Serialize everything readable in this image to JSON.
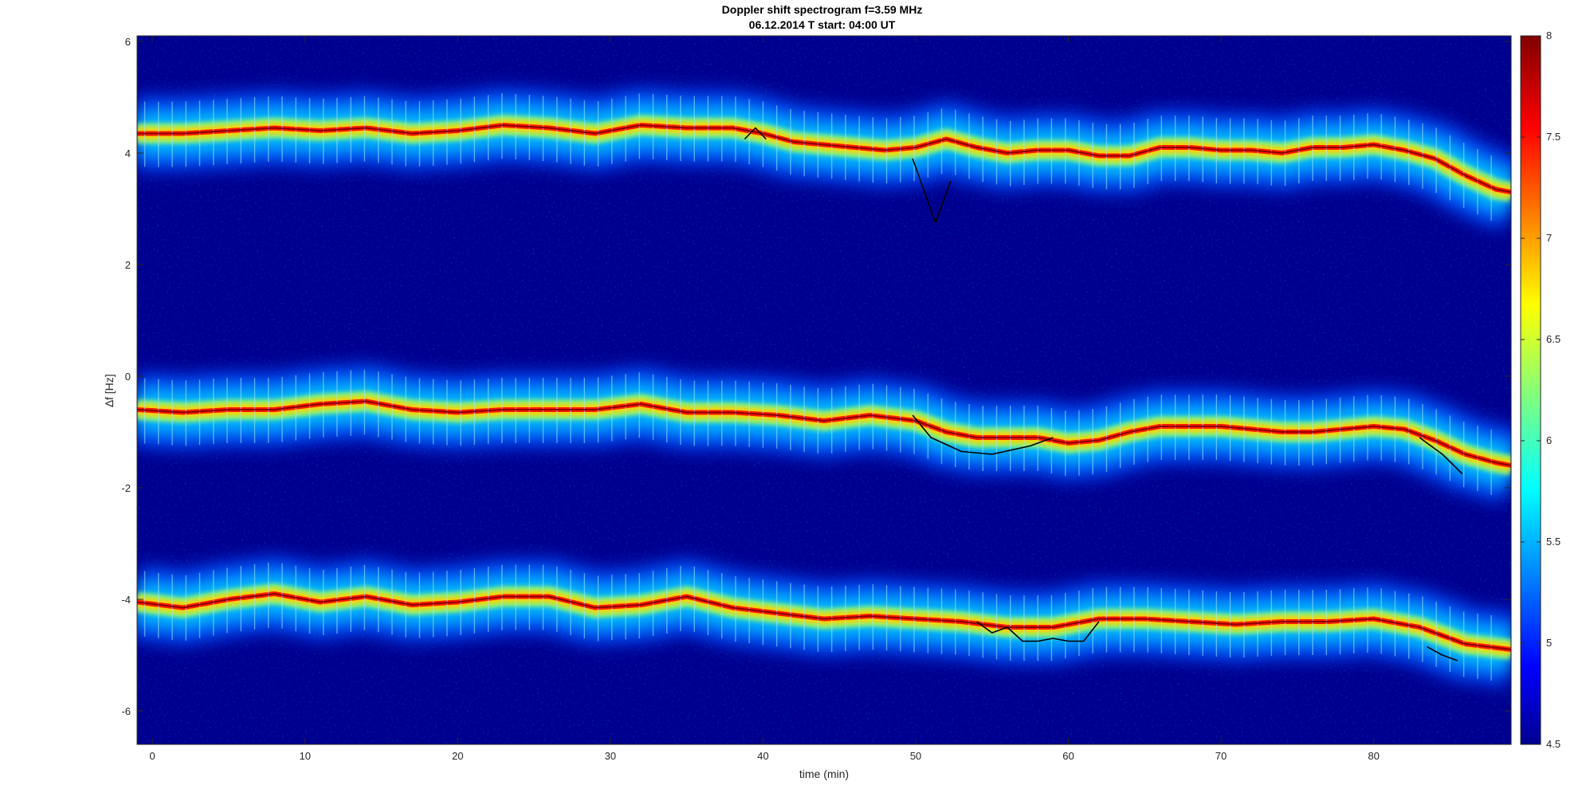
{
  "chart_data": {
    "type": "heatmap",
    "title": "Doppler shift spectrogram f=3.59 MHz",
    "subtitle": "06.12.2014   T start: 04:00 UT",
    "xlabel": "time (min)",
    "ylabel": "∆f [Hz]",
    "xlim": [
      -1,
      89
    ],
    "ylim": [
      -6.6,
      6.1
    ],
    "x_ticks": [
      "0",
      "10",
      "20",
      "30",
      "40",
      "50",
      "60",
      "70",
      "80"
    ],
    "y_ticks": [
      "6",
      "4",
      "2",
      "0",
      "-2",
      "-4",
      "-6"
    ],
    "colorbar": {
      "range": [
        4.5,
        8
      ],
      "ticks": [
        "8",
        "7.5",
        "7",
        "6.5",
        "6",
        "5.5",
        "5",
        "4.5"
      ],
      "colormap": "jet"
    },
    "background_color": "#00008f",
    "traces": [
      {
        "x": [
          -1,
          2,
          5,
          8,
          11,
          14,
          17,
          20,
          23,
          26,
          29,
          32,
          35,
          38,
          40,
          42,
          44,
          46,
          48,
          50,
          52,
          54,
          56,
          58,
          60,
          62,
          64,
          66,
          68,
          70,
          72,
          74,
          76,
          78,
          80,
          82,
          84,
          86,
          88,
          89
        ],
        "y": [
          4.35,
          4.35,
          4.4,
          4.45,
          4.4,
          4.45,
          4.35,
          4.4,
          4.5,
          4.45,
          4.35,
          4.5,
          4.45,
          4.45,
          4.35,
          4.2,
          4.15,
          4.1,
          4.05,
          4.1,
          4.25,
          4.1,
          4.0,
          4.05,
          4.05,
          3.95,
          3.95,
          4.1,
          4.1,
          4.05,
          4.05,
          4.0,
          4.1,
          4.1,
          4.15,
          4.05,
          3.9,
          3.6,
          3.35,
          3.3
        ]
      },
      {
        "x": [
          -1,
          2,
          5,
          8,
          11,
          14,
          17,
          20,
          23,
          26,
          29,
          32,
          35,
          38,
          41,
          44,
          47,
          50,
          52,
          54,
          56,
          58,
          60,
          62,
          64,
          66,
          68,
          70,
          72,
          74,
          76,
          78,
          80,
          82,
          84,
          86,
          88,
          89
        ],
        "y": [
          -0.6,
          -0.65,
          -0.6,
          -0.6,
          -0.5,
          -0.45,
          -0.6,
          -0.65,
          -0.6,
          -0.6,
          -0.6,
          -0.5,
          -0.65,
          -0.65,
          -0.7,
          -0.8,
          -0.7,
          -0.8,
          -1.0,
          -1.1,
          -1.1,
          -1.1,
          -1.2,
          -1.15,
          -1.0,
          -0.9,
          -0.9,
          -0.9,
          -0.95,
          -1.0,
          -1.0,
          -0.95,
          -0.9,
          -0.95,
          -1.15,
          -1.4,
          -1.55,
          -1.6
        ]
      },
      {
        "x": [
          -1,
          2,
          5,
          8,
          11,
          14,
          17,
          20,
          23,
          26,
          29,
          32,
          35,
          38,
          41,
          44,
          47,
          50,
          53,
          56,
          59,
          62,
          65,
          68,
          71,
          74,
          77,
          80,
          83,
          86,
          89
        ],
        "y": [
          -4.05,
          -4.15,
          -4.0,
          -3.9,
          -4.05,
          -3.95,
          -4.1,
          -4.05,
          -3.95,
          -3.95,
          -4.15,
          -4.1,
          -3.95,
          -4.15,
          -4.25,
          -4.35,
          -4.3,
          -4.35,
          -4.4,
          -4.5,
          -4.5,
          -4.35,
          -4.35,
          -4.4,
          -4.45,
          -4.4,
          -4.4,
          -4.35,
          -4.5,
          -4.8,
          -4.9
        ]
      }
    ],
    "markers": [
      {
        "x": [
          38.8,
          39.5,
          40.2
        ],
        "y": [
          4.25,
          4.45,
          4.25
        ]
      },
      {
        "x": [
          49.8,
          51.3,
          52.3
        ],
        "y": [
          3.9,
          2.75,
          3.5
        ]
      },
      {
        "x": [
          49.8,
          51.0,
          53.0,
          55.0,
          57.5,
          59.0
        ],
        "y": [
          -0.7,
          -1.1,
          -1.35,
          -1.4,
          -1.25,
          -1.1
        ]
      },
      {
        "x": [
          83.0,
          84.5,
          85.8
        ],
        "y": [
          -1.1,
          -1.4,
          -1.75
        ]
      },
      {
        "x": [
          54.0,
          55.0,
          56.0,
          57.0,
          58.0,
          59.0,
          60.0,
          61.0,
          62.0
        ],
        "y": [
          -4.4,
          -4.6,
          -4.5,
          -4.75,
          -4.75,
          -4.7,
          -4.75,
          -4.75,
          -4.4
        ]
      },
      {
        "x": [
          83.5,
          84.5,
          85.5
        ],
        "y": [
          -4.85,
          -5.0,
          -5.1
        ]
      }
    ]
  }
}
